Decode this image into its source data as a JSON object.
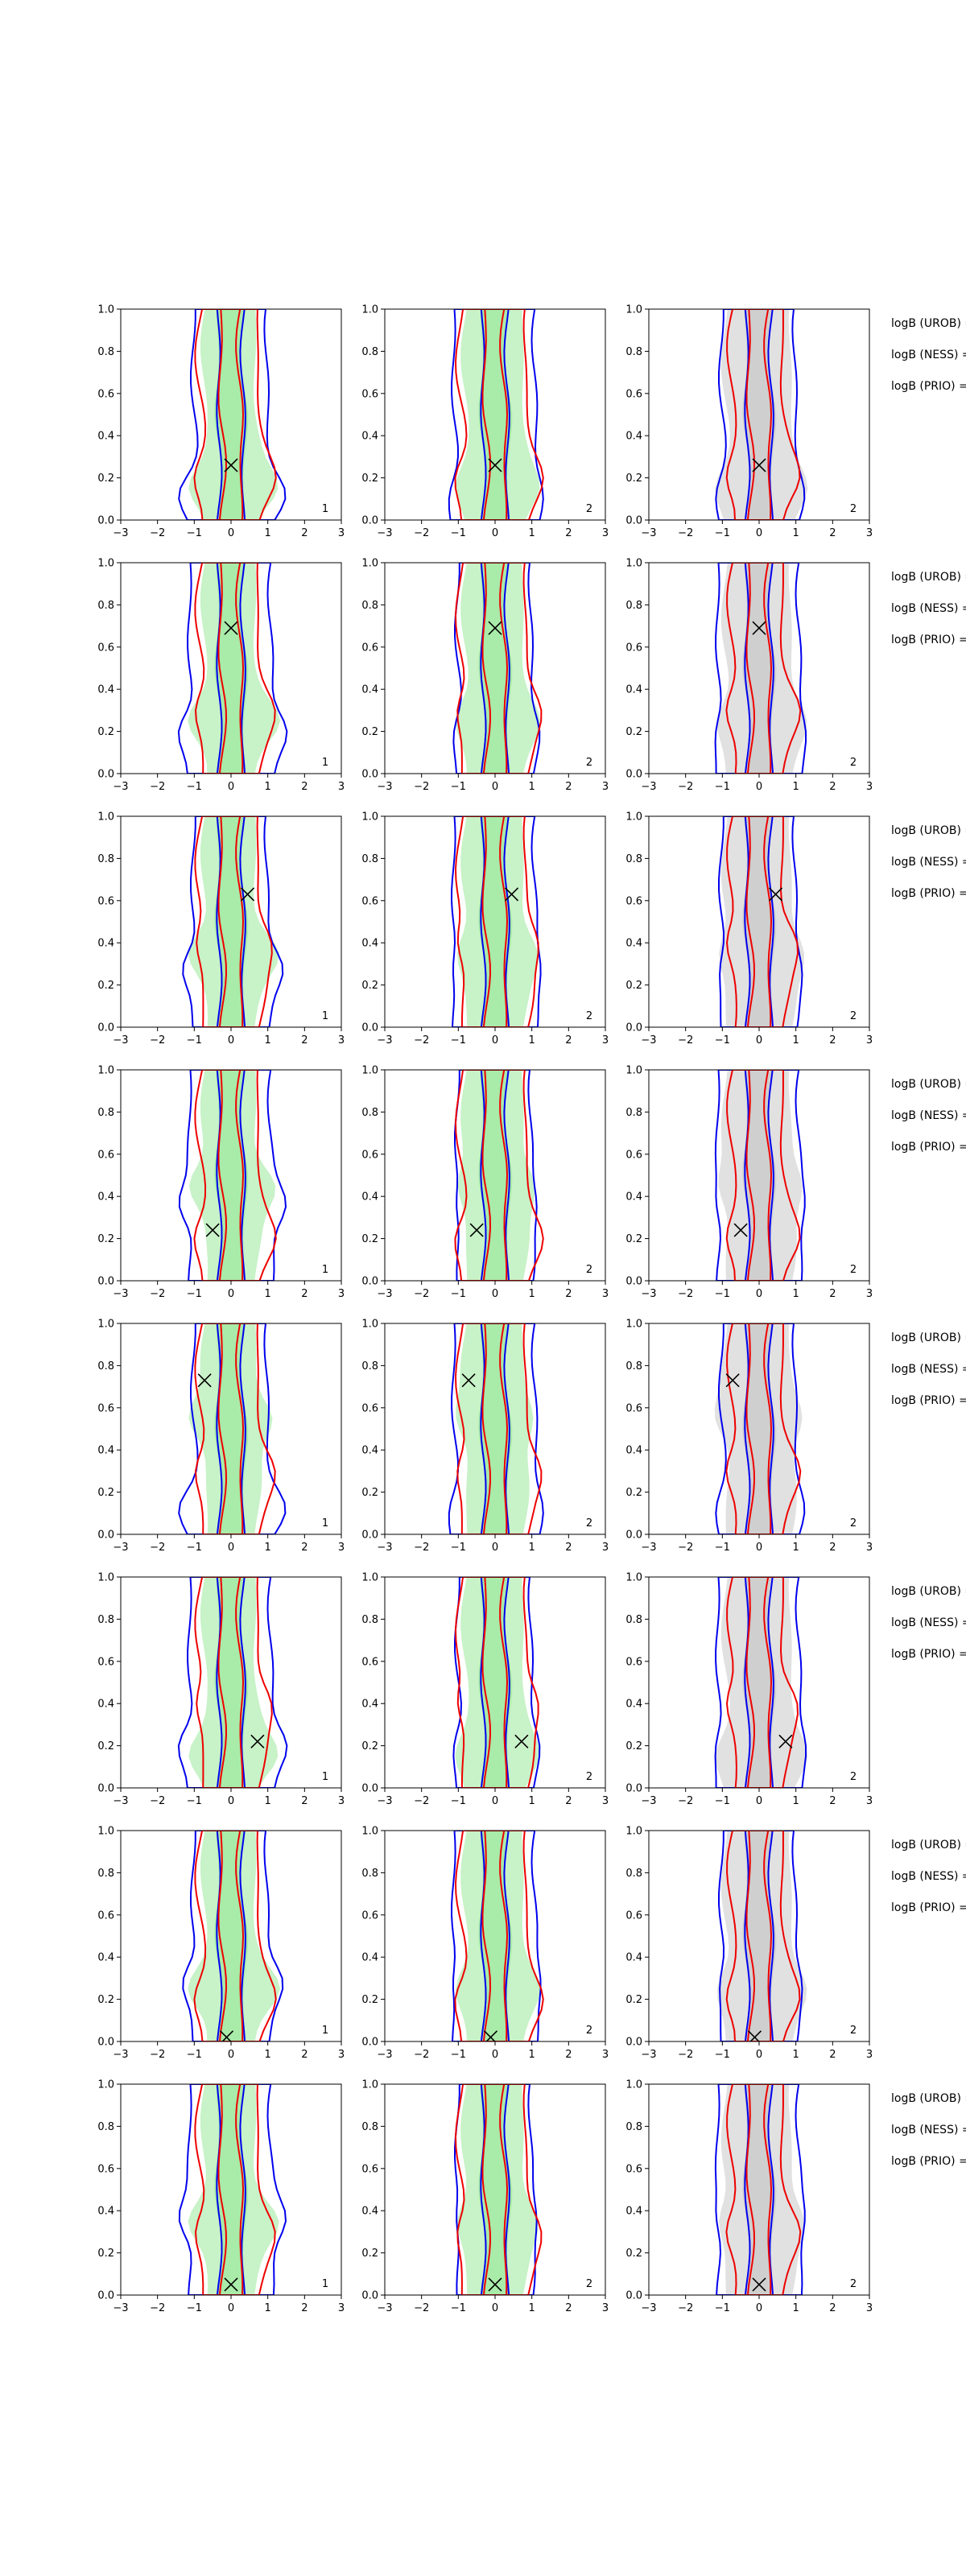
{
  "chart_data": {
    "type": "contour-grid",
    "rows": 8,
    "cols": 3,
    "xlim": [
      -3,
      3
    ],
    "ylim": [
      0,
      1
    ],
    "x_ticks": [
      "−3",
      "−2",
      "−1",
      "0",
      "1",
      "2",
      "3"
    ],
    "y_ticks": [
      "0.0",
      "0.2",
      "0.4",
      "0.6",
      "0.8",
      "1.0"
    ],
    "panel_ids": [
      "1",
      "2",
      "2"
    ],
    "row_labels": [
      "logB (UROB) =",
      "logB (NESS) =",
      "logB (PRIO) ="
    ],
    "markers": [
      {
        "x": 0.0,
        "y": 0.26
      },
      {
        "x": 0.0,
        "y": 0.69
      },
      {
        "x": 0.45,
        "y": 0.63
      },
      {
        "x": -0.5,
        "y": 0.24
      },
      {
        "x": -0.72,
        "y": 0.73
      },
      {
        "x": 0.72,
        "y": 0.22
      },
      {
        "x": -0.12,
        "y": 0.02
      },
      {
        "x": 0.0,
        "y": 0.05
      }
    ],
    "colors": {
      "blue": "#0000ee",
      "red": "#ee0000",
      "green_fill": "#9be89b",
      "grey_fill": "#c8c8c8"
    }
  }
}
